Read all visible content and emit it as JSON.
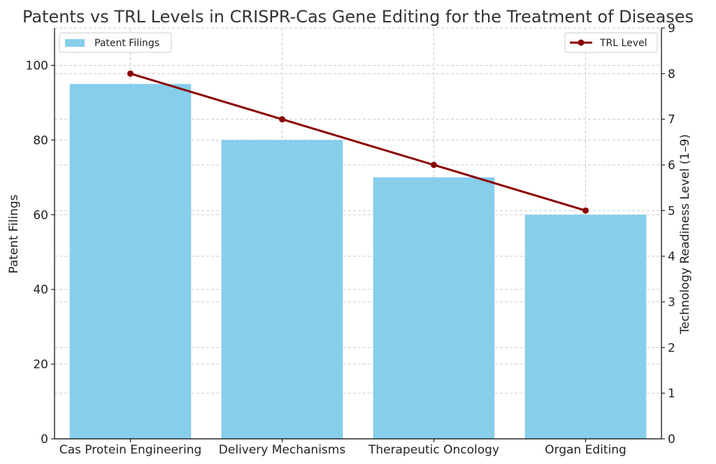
{
  "chart_data": {
    "type": "bar",
    "title": "Patents vs TRL Levels in CRISPR-Cas Gene Editing for the Treatment of Diseases",
    "categories": [
      "Cas Protein Engineering",
      "Delivery Mechanisms",
      "Therapeutic Oncology",
      "Organ Editing"
    ],
    "series": [
      {
        "name": "Patent Filings",
        "type": "bar",
        "axis": "left",
        "color": "#87CEEB",
        "values": [
          95,
          80,
          70,
          60
        ]
      },
      {
        "name": "TRL Level",
        "type": "line",
        "axis": "right",
        "color": "#8B0000",
        "values": [
          8,
          7,
          6,
          5
        ]
      }
    ],
    "ylabel": "Patent Filings",
    "ylim": [
      0,
      110
    ],
    "yticks": [
      0,
      20,
      40,
      60,
      80,
      100
    ],
    "y2label": "Technology Readiness Level (1–9)",
    "y2lim": [
      0,
      9
    ],
    "y2ticks": [
      0,
      1,
      2,
      3,
      4,
      5,
      6,
      7,
      8,
      9
    ],
    "grid": true,
    "legend": {
      "bars": "top-left",
      "line": "top-right"
    }
  }
}
